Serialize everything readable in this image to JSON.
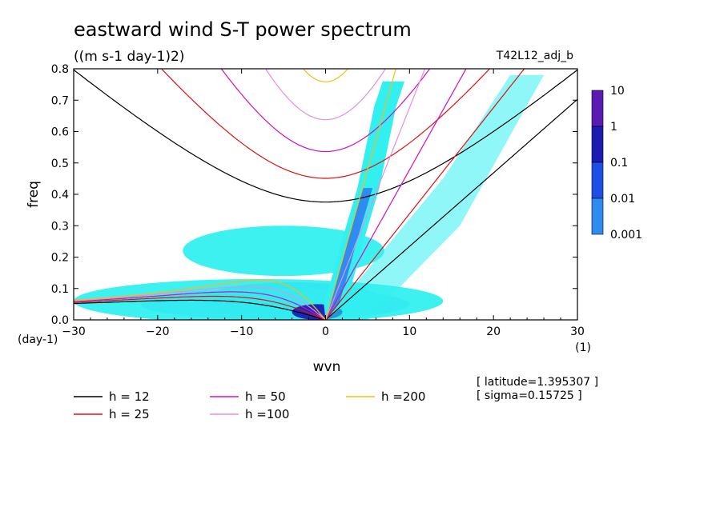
{
  "chart_data": {
    "type": "heatmap",
    "title": "eastward wind S-T power spectrum",
    "subtitle": "((m s-1 day-1)2)",
    "run_label": "T42L12_adj_b",
    "xlabel": "wvn",
    "x_unit": "(1)",
    "ylabel": "freq",
    "y_unit": "(day-1)",
    "xlim": [
      -30,
      30
    ],
    "ylim": [
      0,
      0.8
    ],
    "xticks": [
      "−30",
      "−20",
      "−10",
      "0",
      "10",
      "20",
      "30"
    ],
    "xtick_values": [
      -30,
      -20,
      -10,
      0,
      10,
      20,
      30
    ],
    "yticks": [
      "0.0",
      "0.1",
      "0.2",
      "0.3",
      "0.4",
      "0.5",
      "0.6",
      "0.7",
      "0.8"
    ],
    "ytick_values": [
      0,
      0.1,
      0.2,
      0.3,
      0.4,
      0.5,
      0.6,
      0.7,
      0.8
    ],
    "colorbar": {
      "labels": [
        "10",
        "1",
        "0.1",
        "0.01",
        "0.001"
      ],
      "colors": [
        "#5a1ab4",
        "#1c1cb4",
        "#1e4ee6",
        "#2e8cf0",
        "#33f0f0"
      ]
    },
    "contour_levels": [
      "0.001",
      "0.01",
      "0.1",
      "1"
    ],
    "contour_colors": [
      "#33f0f0",
      "#2e8cf0",
      "#1e4ee6",
      "#1c1cb4"
    ],
    "dispersion_series": [
      {
        "name": "h = 12",
        "h": 12,
        "color": "#000000"
      },
      {
        "name": "h = 25",
        "h": 25,
        "color": "#e01010"
      },
      {
        "name": "h = 50",
        "h": 50,
        "color": "#d010c0"
      },
      {
        "name": "h =100",
        "h": 100,
        "color": "#e090e0"
      },
      {
        "name": "h =200",
        "h": 200,
        "color": "#f0c010"
      }
    ],
    "rossby_blobs": [
      {
        "cx": -4,
        "cy": 0.06,
        "rx": 11,
        "ry": 0.06,
        "level": 2
      },
      {
        "cx": -6,
        "cy": 0.05,
        "rx": 16,
        "ry": 0.05,
        "level": 1
      },
      {
        "cx": -8,
        "cy": 0.06,
        "rx": 22,
        "ry": 0.07,
        "level": 0
      },
      {
        "cx": -5,
        "cy": 0.22,
        "rx": 12,
        "ry": 0.08,
        "level": 0
      },
      {
        "cx": -1,
        "cy": 0.025,
        "rx": 3,
        "ry": 0.025,
        "level": 3
      }
    ],
    "kelvin_band_points": [
      {
        "k": 1,
        "f": 0.05
      },
      {
        "k": 2,
        "f": 0.14
      },
      {
        "k": 3,
        "f": 0.24
      },
      {
        "k": 4,
        "f": 0.33
      },
      {
        "k": 5,
        "f": 0.42
      },
      {
        "k": 6,
        "f": 0.55
      },
      {
        "k": 7,
        "f": 0.68
      },
      {
        "k": 8,
        "f": 0.76
      }
    ]
  },
  "annotations": {
    "latitude": "[ latitude=1.395307 ]",
    "sigma": "[ sigma=0.15725 ]"
  }
}
